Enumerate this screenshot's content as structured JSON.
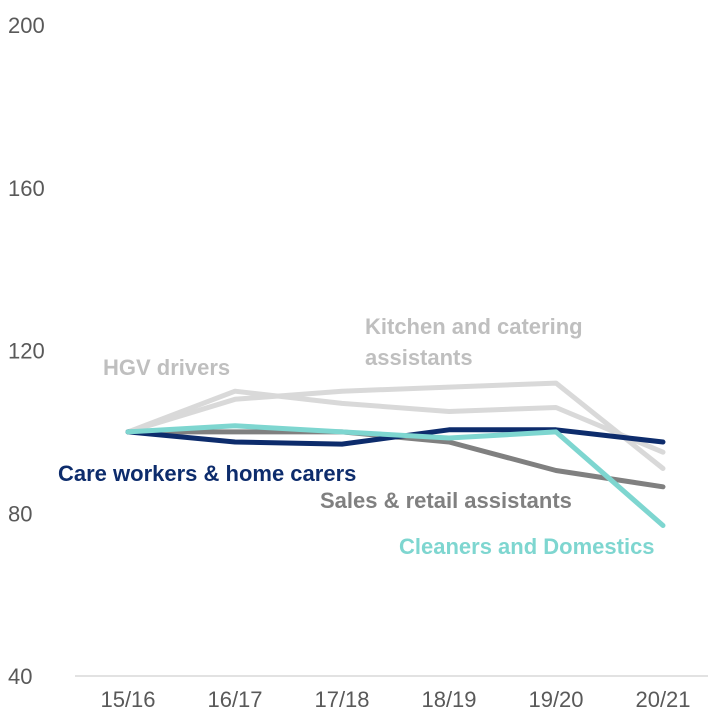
{
  "chart_data": {
    "type": "line",
    "categories": [
      "15/16",
      "16/17",
      "17/18",
      "18/19",
      "19/20",
      "20/21"
    ],
    "yticks": [
      40,
      80,
      120,
      160,
      200
    ],
    "ylim": [
      40,
      200
    ],
    "grid": false,
    "series": [
      {
        "key": "kitchen",
        "name": "Kitchen and catering assistants",
        "name_lines": [
          "Kitchen and catering",
          "assistants"
        ],
        "color": "#D9D9D9",
        "values": [
          100,
          108,
          110,
          111,
          112,
          91
        ]
      },
      {
        "key": "hgv",
        "name": "HGV drivers",
        "name_lines": [
          "HGV drivers"
        ],
        "color": "#D9D9D9",
        "values": [
          100,
          110,
          107,
          105,
          106,
          95
        ]
      },
      {
        "key": "sales",
        "name": "Sales & retail assistants",
        "name_lines": [
          "Sales & retail assistants"
        ],
        "color": "#808080",
        "values": [
          100,
          100,
          100,
          97.5,
          90.5,
          86.5
        ]
      },
      {
        "key": "care",
        "name": "Care workers & home carers",
        "name_lines": [
          "Care workers & home carers"
        ],
        "color": "#0D2C6C",
        "values": [
          100,
          97.5,
          97,
          100.5,
          100.5,
          97.5
        ]
      },
      {
        "key": "cleaners",
        "name": "Cleaners and Domestics",
        "name_lines": [
          "Cleaners and Domestics"
        ],
        "color": "#7ED6D0",
        "values": [
          100,
          101.5,
          100,
          98.5,
          100,
          77
        ]
      }
    ]
  }
}
